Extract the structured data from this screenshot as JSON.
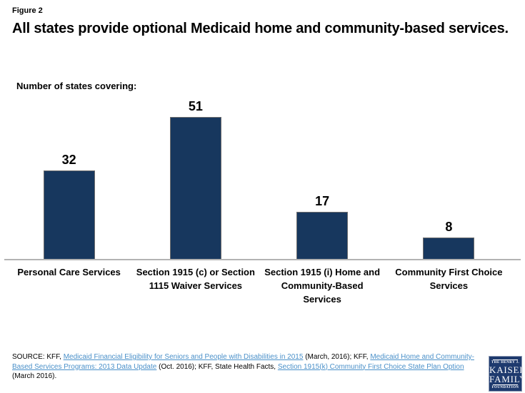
{
  "page": {
    "figure_label": "Figure 2",
    "title": "All states provide optional Medicaid home and community-based services."
  },
  "chart_data": {
    "type": "bar",
    "title": "All states provide optional Medicaid home and community-based services.",
    "axis_label": "Number of states covering:",
    "categories": [
      "Personal Care Services",
      "Section 1915 (c) or Section 1115 Waiver Services",
      "Section 1915 (i) Home and Community-Based Services",
      "Community First Choice Services"
    ],
    "values": [
      32,
      51,
      17,
      8
    ],
    "data_labels": [
      32,
      51,
      17,
      8
    ],
    "bar_color": "#17375E",
    "axis_line_color": "#B3B3B3",
    "ylim": [
      0,
      55
    ],
    "grid": false,
    "legend": "none"
  },
  "source": {
    "link_color": "#4A90C9",
    "segments": [
      {
        "text": "SOURCE: KFF, ",
        "link": false
      },
      {
        "text": "Medicaid Financial Eligibility for Seniors and People with Disabilities in 2015",
        "link": true
      },
      {
        "text": " (March, 2016); KFF, ",
        "link": false
      },
      {
        "text": "Medicaid Home and Community-Based Services Programs:  2013 Data Update",
        "link": true
      },
      {
        "text": " (Oct. 2016); KFF, State Health Facts, ",
        "link": false
      },
      {
        "text": "Section 1915(k) Community First Choice State Plan Option",
        "link": true
      },
      {
        "text": " (March 2016).",
        "link": false
      }
    ]
  },
  "logo": {
    "line1": "THE HENRY J.",
    "line2": "KAISER",
    "line3": "FAMILY",
    "line4": "FOUNDATION",
    "bg_color": "#1E3A6E"
  }
}
